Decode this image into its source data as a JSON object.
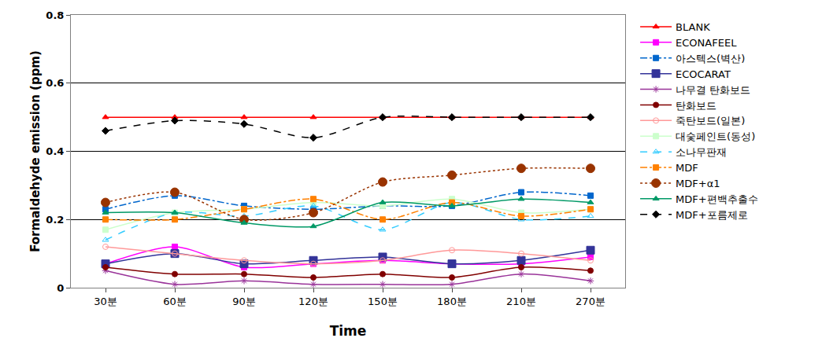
{
  "chart_data": {
    "type": "line",
    "x_label": "Time",
    "y_label": "Formaldehyde emission (ppm)",
    "categories": [
      "30분",
      "60분",
      "90분",
      "120분",
      "150분",
      "180분",
      "210분",
      "270분"
    ],
    "ylim": [
      0,
      0.8
    ],
    "yticks": [
      0,
      0.2,
      0.4,
      0.6,
      0.8
    ],
    "grid": true,
    "legend": "right",
    "series": [
      {
        "name": "BLANK",
        "color": "#ff0000",
        "marker": "triangle-up",
        "line_style": "solid",
        "values": [
          0.5,
          0.5,
          0.5,
          0.5,
          0.5,
          0.5,
          0.5,
          0.5
        ]
      },
      {
        "name": "ECONAFEEL",
        "color": "#ff00ff",
        "marker": "square",
        "line_style": "solid",
        "values": [
          0.07,
          0.12,
          0.06,
          0.07,
          0.08,
          0.07,
          0.07,
          0.09
        ]
      },
      {
        "name": "아스텍스(벽산)",
        "color": "#0066cc",
        "marker": "square",
        "line_style": "dashdot",
        "values": [
          0.23,
          0.27,
          0.24,
          0.23,
          0.24,
          0.24,
          0.28,
          0.27
        ]
      },
      {
        "name": "ECOCARAT",
        "color": "#333399",
        "marker": "square",
        "line_style": "solid",
        "values": [
          0.07,
          0.1,
          0.07,
          0.08,
          0.09,
          0.07,
          0.08,
          0.11
        ]
      },
      {
        "name": "나무결 탄화보드",
        "color": "#993399",
        "marker": "asterisk-open",
        "line_style": "solid",
        "values": [
          0.05,
          0.01,
          0.02,
          0.01,
          0.01,
          0.01,
          0.04,
          0.02
        ]
      },
      {
        "name": "탄화보드",
        "color": "#800000",
        "marker": "circle",
        "line_style": "solid",
        "values": [
          0.06,
          0.04,
          0.04,
          0.03,
          0.04,
          0.03,
          0.06,
          0.05
        ]
      },
      {
        "name": "죽탄보드(일본)",
        "color": "#ff9999",
        "marker": "circle-open",
        "line_style": "solid",
        "values": [
          0.12,
          0.1,
          0.08,
          0.07,
          0.08,
          0.11,
          0.1,
          0.08
        ]
      },
      {
        "name": "대숯페인트(동성)",
        "color": "#ccffcc",
        "marker": "square",
        "line_style": "solid",
        "values": [
          0.17,
          0.22,
          0.23,
          0.25,
          0.24,
          0.26,
          0.22,
          0.23
        ]
      },
      {
        "name": "소나무판재",
        "color": "#33ccff",
        "marker": "triangle-up-open",
        "line_style": "dash",
        "values": [
          0.14,
          0.22,
          0.21,
          0.24,
          0.17,
          0.25,
          0.2,
          0.21
        ]
      },
      {
        "name": "MDF",
        "color": "#ff8000",
        "marker": "square",
        "line_style": "dashdot",
        "values": [
          0.2,
          0.2,
          0.23,
          0.26,
          0.2,
          0.25,
          0.21,
          0.23
        ]
      },
      {
        "name": "MDF+α1",
        "color": "#993300",
        "marker": "circle",
        "line_style": "dot",
        "values": [
          0.25,
          0.28,
          0.2,
          0.22,
          0.31,
          0.33,
          0.35,
          0.35
        ]
      },
      {
        "name": "MDF+편백추출수",
        "color": "#009966",
        "marker": "triangle-up",
        "line_style": "solid",
        "values": [
          0.22,
          0.22,
          0.19,
          0.18,
          0.25,
          0.24,
          0.26,
          0.25
        ]
      },
      {
        "name": "MDF+포름제로",
        "color": "#000000",
        "marker": "diamond",
        "line_style": "dash",
        "values": [
          0.46,
          0.49,
          0.48,
          0.44,
          0.5,
          0.5,
          0.5,
          0.5
        ]
      }
    ]
  }
}
